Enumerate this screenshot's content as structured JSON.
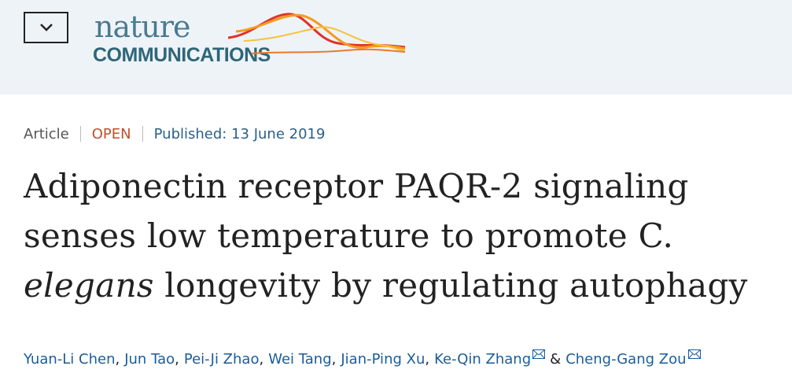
{
  "header": {
    "logo_line1": "nature",
    "logo_line2": "COMMUNICATIONS"
  },
  "meta": {
    "type": "Article",
    "access": "OPEN",
    "published_label": "Published:",
    "published_date": "13 June 2019"
  },
  "title": {
    "line1": "Adiponectin receptor PAQR-2 signaling",
    "line2": "senses low temperature to promote C.",
    "line3_italic": "elegans",
    "line3_rest": " longevity by regulating autophagy"
  },
  "authors": [
    {
      "name": "Yuan-Li Chen",
      "sep": ","
    },
    {
      "name": "Jun Tao",
      "sep": ","
    },
    {
      "name": "Pei-Ji Zhao",
      "sep": ","
    },
    {
      "name": "Wei Tang",
      "sep": ","
    },
    {
      "name": "Jian-Ping Xu",
      "sep": ","
    },
    {
      "name": "Ke-Qin Zhang",
      "sep": "&",
      "email": true
    },
    {
      "name": "Cheng-Gang Zou",
      "email": true
    }
  ]
}
